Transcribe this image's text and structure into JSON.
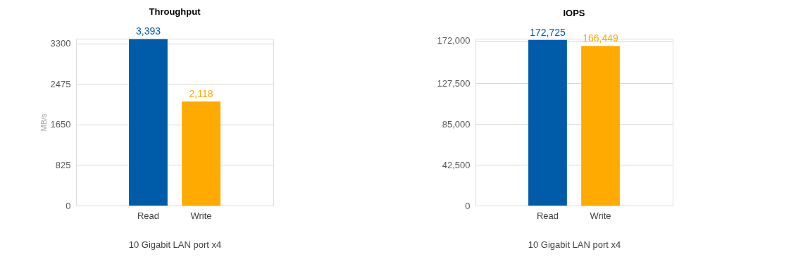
{
  "chart_data": [
    {
      "type": "bar",
      "title": "Throughput",
      "ylabel": "MB/s",
      "xlabel": "10 Gigabit LAN port x4",
      "categories": [
        "Read",
        "Write"
      ],
      "values": [
        3393,
        2118
      ],
      "colors": [
        "#005ba8",
        "#ffaa00"
      ],
      "value_labels": [
        "3,393",
        "2,118"
      ],
      "ylim": [
        0,
        3400
      ],
      "yticks": [
        0,
        825,
        1650,
        2475,
        3300
      ],
      "grid": "y"
    },
    {
      "type": "bar",
      "title": "IOPS",
      "xlabel": "10 Gigabit LAN port x4",
      "categories": [
        "Read",
        "Write"
      ],
      "values": [
        172725,
        166449
      ],
      "colors": [
        "#005ba8",
        "#ffaa00"
      ],
      "value_labels": [
        "172,725",
        "166,449"
      ],
      "ylim": [
        0,
        174000
      ],
      "yticks": [
        0,
        {
          "value": 42500,
          "label": "42,500"
        },
        {
          "value": 85000,
          "label": "85,000"
        },
        {
          "value": 127500,
          "label": "127,500"
        },
        {
          "value": 172000,
          "label": "172,000"
        }
      ],
      "grid": "y"
    }
  ]
}
